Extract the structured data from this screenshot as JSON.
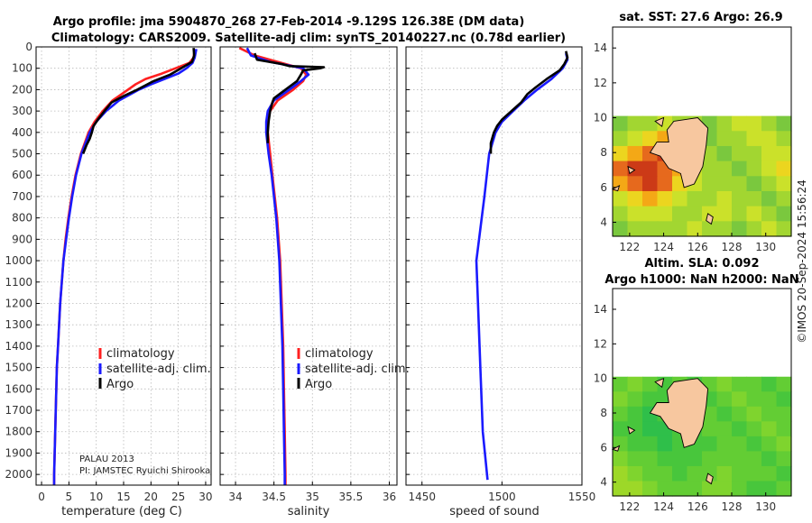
{
  "header": {
    "line1": "Argo profile: jma 5904870_268 27-Feb-2014 -9.129S 126.38E (DM data)",
    "line2": "Climatology: CARS2009. Satellite-adj clim: synTS_20140227.nc (0.78d earlier)"
  },
  "colors": {
    "climatology": "#ff2020",
    "satellite": "#1a1aff",
    "argo": "#000000",
    "land": "#f7c79f"
  },
  "legend": {
    "climatology": "climatology",
    "satellite": "satellite-adj. clim.",
    "argo": "Argo"
  },
  "annotation": {
    "line1": "PALAU 2013",
    "line2": "PI: JAMSTEC Ryuichi Shirooka"
  },
  "watermark": "©IMOS 20-Sep-2024 15:56:24",
  "chart_data": [
    {
      "type": "line",
      "xlabel": "temperature (deg C)",
      "xlim": [
        -1,
        31
      ],
      "ylim": [
        2050,
        0
      ],
      "xticks": [
        0,
        5,
        10,
        15,
        20,
        25,
        30
      ],
      "yticks": [
        0,
        100,
        200,
        300,
        400,
        500,
        600,
        700,
        800,
        900,
        1000,
        1100,
        1200,
        1300,
        1400,
        1500,
        1600,
        1700,
        1800,
        1900,
        2000
      ],
      "series": [
        {
          "name": "climatology",
          "depth": [
            10,
            50,
            75,
            100,
            125,
            150,
            175,
            200,
            250,
            300,
            350,
            400,
            500,
            600,
            700,
            800,
            900,
            1000,
            1100,
            1200,
            1300,
            1400,
            1500,
            1600,
            1700,
            1800,
            1900,
            2000,
            2050
          ],
          "values": [
            28,
            27.8,
            27.0,
            24.5,
            22.0,
            19.0,
            17.2,
            15.8,
            13.0,
            11.2,
            9.7,
            8.6,
            7.2,
            6.2,
            5.5,
            4.9,
            4.4,
            4.0,
            3.7,
            3.4,
            3.2,
            3.0,
            2.8,
            2.7,
            2.6,
            2.5,
            2.4,
            2.3,
            2.3
          ]
        },
        {
          "name": "satellite-adj. clim.",
          "depth": [
            10,
            50,
            75,
            100,
            125,
            150,
            175,
            200,
            250,
            300,
            350,
            400,
            500,
            600,
            700,
            800,
            900,
            1000,
            1100,
            1200,
            1300,
            1400,
            1500,
            1600,
            1700,
            1800,
            1900,
            2000,
            2050
          ],
          "values": [
            28.3,
            28.0,
            27.6,
            26.5,
            25.0,
            22.5,
            20.0,
            17.8,
            14.2,
            11.8,
            10.0,
            8.8,
            7.3,
            6.3,
            5.6,
            5.0,
            4.5,
            4.0,
            3.7,
            3.4,
            3.2,
            3.0,
            2.8,
            2.7,
            2.6,
            2.5,
            2.4,
            2.3,
            2.3
          ]
        },
        {
          "name": "Argo",
          "depth": [
            5,
            40,
            70,
            100,
            130,
            160,
            200,
            230,
            260,
            300,
            340,
            370,
            400,
            430,
            460,
            500
          ],
          "values": [
            27.8,
            27.9,
            27.5,
            25.5,
            23.5,
            20.5,
            17.5,
            15.0,
            12.8,
            11.5,
            10.3,
            9.5,
            9.2,
            8.8,
            8.2,
            7.6
          ]
        }
      ]
    },
    {
      "type": "line",
      "xlabel": "salinity",
      "xlim": [
        33.8,
        36.1
      ],
      "ylim": [
        2050,
        0
      ],
      "xticks": [
        34,
        34.5,
        35,
        35.5,
        36
      ],
      "xtick_labels": [
        "34",
        "34.5",
        "35",
        "35.5",
        "36"
      ],
      "yticks": [
        0,
        100,
        200,
        300,
        400,
        500,
        600,
        700,
        800,
        900,
        1000,
        1100,
        1200,
        1300,
        1400,
        1500,
        1600,
        1700,
        1800,
        1900,
        2000
      ],
      "series": [
        {
          "name": "climatology",
          "depth": [
            5,
            40,
            70,
            100,
            130,
            160,
            200,
            250,
            300,
            350,
            400,
            500,
            600,
            800,
            1000,
            1200,
            1400,
            1600,
            1800,
            2000,
            2050
          ],
          "values": [
            34.05,
            34.25,
            34.55,
            34.85,
            34.92,
            34.88,
            34.75,
            34.55,
            34.45,
            34.42,
            34.42,
            34.45,
            34.48,
            34.54,
            34.58,
            34.6,
            34.62,
            34.63,
            34.64,
            34.65,
            34.65
          ]
        },
        {
          "name": "satellite-adj. clim.",
          "depth": [
            5,
            40,
            70,
            100,
            130,
            160,
            200,
            250,
            300,
            350,
            400,
            500,
            600,
            800,
            1000,
            1200,
            1400,
            1600,
            1800,
            2000,
            2050
          ],
          "values": [
            34.15,
            34.2,
            34.45,
            34.88,
            34.95,
            34.85,
            34.7,
            34.5,
            34.42,
            34.4,
            34.4,
            34.43,
            34.47,
            34.53,
            34.57,
            34.59,
            34.61,
            34.62,
            34.63,
            34.64,
            34.64
          ]
        },
        {
          "name": "Argo",
          "depth": [
            30,
            60,
            80,
            90,
            95,
            100,
            110,
            130,
            160,
            200,
            240,
            260,
            300,
            350,
            400,
            450
          ],
          "values": [
            34.25,
            34.28,
            34.6,
            34.7,
            35.15,
            35.1,
            34.88,
            34.85,
            34.8,
            34.65,
            34.5,
            34.48,
            34.45,
            34.43,
            34.42,
            34.42
          ]
        }
      ]
    },
    {
      "type": "line",
      "xlabel": "speed of sound",
      "xlim": [
        1440,
        1550
      ],
      "ylim": [
        2050,
        0
      ],
      "xticks": [
        1450,
        1500,
        1550
      ],
      "yticks": [
        0,
        100,
        200,
        300,
        400,
        500,
        600,
        700,
        800,
        900,
        1000,
        1100,
        1200,
        1300,
        1400,
        1500,
        1600,
        1700,
        1800,
        1900,
        2000
      ],
      "series": [
        {
          "name": "satellite-adj. clim.",
          "depth": [
            30,
            60,
            100,
            150,
            200,
            250,
            300,
            350,
            400,
            500,
            700,
            1000,
            1200,
            1500,
            1800,
            2025
          ],
          "values": [
            1540,
            1541,
            1538,
            1531,
            1522,
            1514,
            1507,
            1500,
            1496,
            1492,
            1489,
            1484,
            1485,
            1486.5,
            1488,
            1491
          ]
        },
        {
          "name": "Argo",
          "depth": [
            20,
            50,
            80,
            110,
            150,
            190,
            220,
            260,
            300,
            340,
            370,
            400,
            450,
            500
          ],
          "values": [
            1540,
            1541,
            1539,
            1536,
            1528,
            1521,
            1516,
            1512,
            1506,
            1500,
            1497,
            1495,
            1493,
            1493
          ]
        }
      ]
    },
    {
      "type": "heatmap",
      "title": "sat. SST: 27.6 Argo: 26.9",
      "xlim": [
        121,
        131.5
      ],
      "ylim": [
        3.2,
        15.2
      ],
      "xticks": [
        122,
        124,
        126,
        128,
        130
      ],
      "yticks": [
        4,
        6,
        8,
        10,
        12,
        14
      ],
      "data_lat_range": [
        3.2,
        10.1
      ],
      "palette": [
        "#7ac83e",
        "#a2d631",
        "#cbe12a",
        "#ecd51f",
        "#f4a816",
        "#e6691d",
        "#cc3a17"
      ],
      "sample_grid": [
        [
          0,
          1,
          1,
          2,
          1,
          1,
          0,
          1,
          2,
          2,
          1,
          0
        ],
        [
          1,
          2,
          3,
          4,
          3,
          1,
          0,
          1,
          1,
          2,
          2,
          1
        ],
        [
          3,
          4,
          5,
          6,
          5,
          2,
          1,
          0,
          1,
          1,
          2,
          2
        ],
        [
          5,
          6,
          6,
          5,
          4,
          2,
          1,
          1,
          0,
          1,
          2,
          3
        ],
        [
          4,
          5,
          6,
          5,
          3,
          2,
          1,
          1,
          1,
          0,
          1,
          2
        ],
        [
          2,
          3,
          4,
          3,
          2,
          1,
          1,
          2,
          1,
          1,
          0,
          1
        ],
        [
          1,
          2,
          2,
          2,
          1,
          1,
          2,
          2,
          1,
          2,
          1,
          0
        ],
        [
          0,
          1,
          1,
          1,
          1,
          2,
          1,
          1,
          0,
          1,
          2,
          1
        ]
      ]
    },
    {
      "type": "heatmap",
      "title_line1": "Altim. SLA: 0.092",
      "title_line2": "Argo h1000: NaN h2000: NaN",
      "xlim": [
        121,
        131.5
      ],
      "ylim": [
        3.2,
        15.2
      ],
      "xticks": [
        122,
        124,
        126,
        128,
        130
      ],
      "yticks": [
        4,
        6,
        8,
        10,
        12,
        14
      ],
      "data_lat_range": [
        3.2,
        10.1
      ],
      "palette": [
        "#2fbf4a",
        "#48c63c",
        "#63cd34",
        "#7fd42e",
        "#9dd828"
      ],
      "sample_grid": [
        [
          2,
          3,
          2,
          1,
          2,
          1,
          2,
          3,
          2,
          2,
          1,
          2
        ],
        [
          3,
          2,
          1,
          1,
          2,
          2,
          1,
          2,
          3,
          2,
          2,
          1
        ],
        [
          2,
          1,
          0,
          1,
          1,
          2,
          2,
          1,
          2,
          3,
          2,
          2
        ],
        [
          1,
          1,
          0,
          0,
          1,
          1,
          2,
          2,
          1,
          2,
          3,
          2
        ],
        [
          2,
          1,
          1,
          0,
          1,
          1,
          1,
          2,
          2,
          1,
          2,
          3
        ],
        [
          3,
          2,
          2,
          1,
          1,
          1,
          2,
          2,
          2,
          2,
          1,
          2
        ],
        [
          4,
          3,
          2,
          2,
          1,
          2,
          2,
          3,
          2,
          2,
          2,
          1
        ],
        [
          4,
          4,
          3,
          2,
          2,
          2,
          3,
          3,
          2,
          1,
          1,
          2
        ]
      ]
    }
  ]
}
